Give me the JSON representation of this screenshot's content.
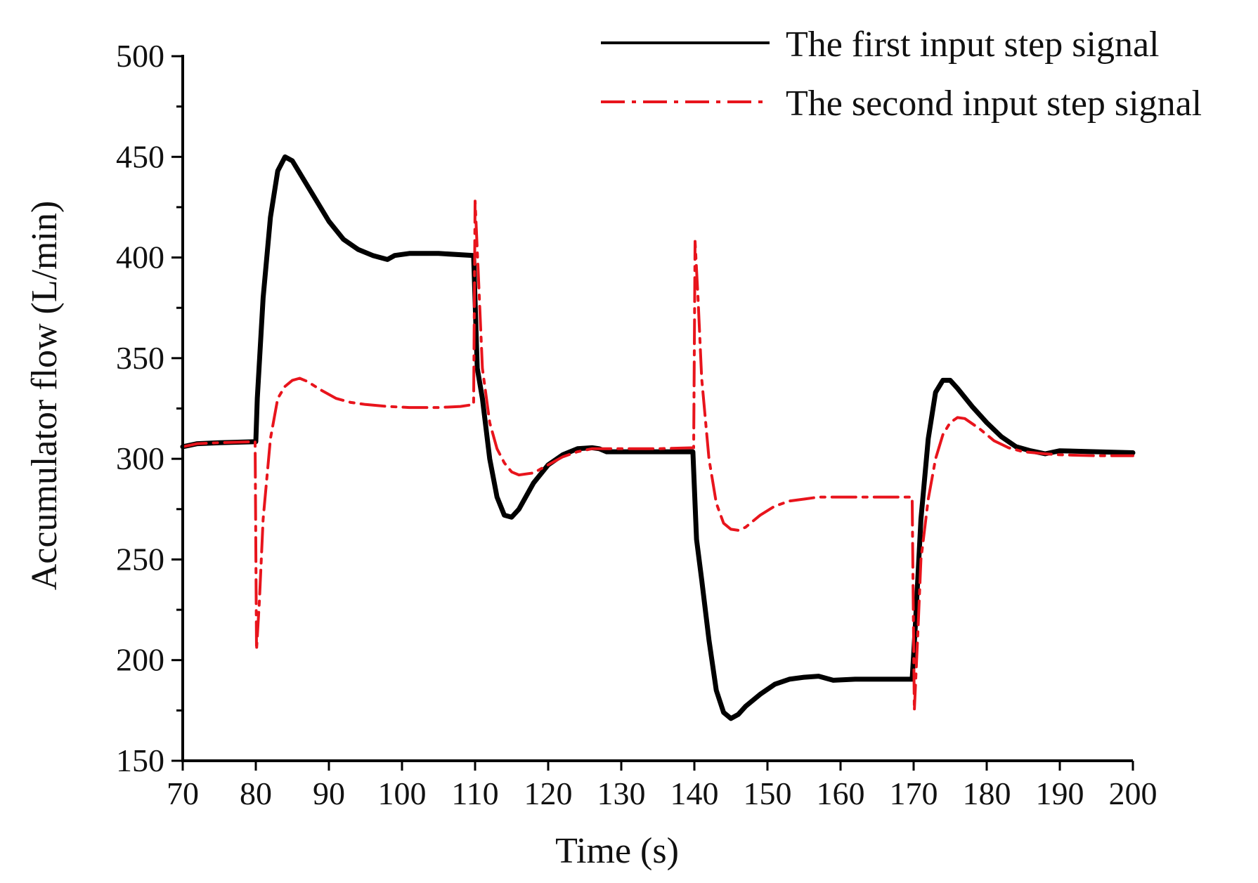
{
  "chart_data": {
    "type": "line",
    "title": "",
    "xlabel": "Time (s)",
    "ylabel": "Accumulator flow (L/min)",
    "xlim": [
      70,
      200
    ],
    "ylim": [
      150,
      500
    ],
    "xticks": [
      70,
      80,
      90,
      100,
      110,
      120,
      130,
      140,
      150,
      160,
      170,
      180,
      190,
      200
    ],
    "yticks": [
      150,
      200,
      250,
      300,
      350,
      400,
      450,
      500
    ],
    "legend_position": "top-right",
    "grid": false,
    "series": [
      {
        "name": "The first input step signal",
        "color": "#000000",
        "style": "solid",
        "points": [
          [
            70,
            306
          ],
          [
            72,
            307.5
          ],
          [
            75,
            308
          ],
          [
            80,
            308.5
          ],
          [
            80.2,
            330
          ],
          [
            81,
            380
          ],
          [
            82,
            420
          ],
          [
            83,
            443
          ],
          [
            84,
            450
          ],
          [
            85,
            448
          ],
          [
            86,
            442
          ],
          [
            88,
            430
          ],
          [
            90,
            418
          ],
          [
            92,
            409
          ],
          [
            94,
            404
          ],
          [
            96,
            401
          ],
          [
            98,
            399
          ],
          [
            99,
            401
          ],
          [
            101,
            402
          ],
          [
            105,
            402
          ],
          [
            109.8,
            401
          ],
          [
            110.3,
            345
          ],
          [
            111,
            330
          ],
          [
            112,
            300
          ],
          [
            113,
            281
          ],
          [
            114,
            272
          ],
          [
            115,
            271
          ],
          [
            116,
            275
          ],
          [
            118,
            288
          ],
          [
            120,
            297
          ],
          [
            122,
            302
          ],
          [
            124,
            305
          ],
          [
            126,
            305.5
          ],
          [
            127,
            305
          ],
          [
            128,
            303.5
          ],
          [
            132,
            303.5
          ],
          [
            139.8,
            303.5
          ],
          [
            140.3,
            260
          ],
          [
            141,
            240
          ],
          [
            142,
            210
          ],
          [
            143,
            185
          ],
          [
            144,
            174
          ],
          [
            145,
            171
          ],
          [
            146,
            173
          ],
          [
            147,
            177
          ],
          [
            149,
            183
          ],
          [
            151,
            188
          ],
          [
            153,
            190.5
          ],
          [
            155,
            191.5
          ],
          [
            157,
            192
          ],
          [
            158,
            191
          ],
          [
            159,
            190
          ],
          [
            162,
            190.5
          ],
          [
            169.8,
            190.5
          ],
          [
            170.2,
            215
          ],
          [
            171,
            270
          ],
          [
            172,
            310
          ],
          [
            173,
            333
          ],
          [
            174,
            339
          ],
          [
            175,
            339
          ],
          [
            176,
            335
          ],
          [
            178,
            326
          ],
          [
            180,
            318
          ],
          [
            182,
            311
          ],
          [
            184,
            306
          ],
          [
            186,
            304
          ],
          [
            188,
            302.5
          ],
          [
            190,
            304
          ],
          [
            195,
            303.5
          ],
          [
            200,
            303
          ]
        ]
      },
      {
        "name": "The second input step signal",
        "color": "#e8141c",
        "style": "dashdot",
        "points": [
          [
            70,
            306
          ],
          [
            72,
            307.5
          ],
          [
            75,
            308
          ],
          [
            79.9,
            308.5
          ],
          [
            80.1,
            205
          ],
          [
            80.5,
            230
          ],
          [
            81,
            270
          ],
          [
            82,
            310
          ],
          [
            83,
            330
          ],
          [
            84,
            336
          ],
          [
            85,
            339
          ],
          [
            86,
            340
          ],
          [
            87,
            338.5
          ],
          [
            89,
            334
          ],
          [
            91,
            330
          ],
          [
            93,
            328
          ],
          [
            95,
            327
          ],
          [
            98,
            326
          ],
          [
            101,
            325.5
          ],
          [
            105,
            325.5
          ],
          [
            108,
            326
          ],
          [
            109.8,
            327
          ],
          [
            110,
            428
          ],
          [
            110.4,
            395
          ],
          [
            111,
            345
          ],
          [
            112,
            318
          ],
          [
            113,
            305
          ],
          [
            114,
            298
          ],
          [
            115,
            293.5
          ],
          [
            116,
            292
          ],
          [
            118,
            293
          ],
          [
            120,
            297
          ],
          [
            122,
            301
          ],
          [
            124,
            303.5
          ],
          [
            126,
            305
          ],
          [
            130,
            305
          ],
          [
            135,
            305
          ],
          [
            139.9,
            305.5
          ],
          [
            140.1,
            408
          ],
          [
            140.5,
            380
          ],
          [
            141,
            340
          ],
          [
            142,
            300
          ],
          [
            143,
            278
          ],
          [
            144,
            268
          ],
          [
            145,
            265
          ],
          [
            146,
            264.5
          ],
          [
            147,
            266
          ],
          [
            149,
            272
          ],
          [
            151,
            276.5
          ],
          [
            153,
            279
          ],
          [
            155,
            280
          ],
          [
            157,
            281
          ],
          [
            160,
            281
          ],
          [
            165,
            281
          ],
          [
            169.8,
            281
          ],
          [
            170.1,
            175
          ],
          [
            170.6,
            215
          ],
          [
            171,
            250
          ],
          [
            172,
            280
          ],
          [
            173,
            300
          ],
          [
            174,
            312
          ],
          [
            175,
            318
          ],
          [
            176,
            320.5
          ],
          [
            177,
            320
          ],
          [
            179,
            315
          ],
          [
            181,
            309
          ],
          [
            183,
            305.5
          ],
          [
            185,
            303.5
          ],
          [
            188,
            302.5
          ],
          [
            190,
            302
          ],
          [
            195,
            301.5
          ],
          [
            200,
            301.5
          ]
        ]
      }
    ]
  }
}
